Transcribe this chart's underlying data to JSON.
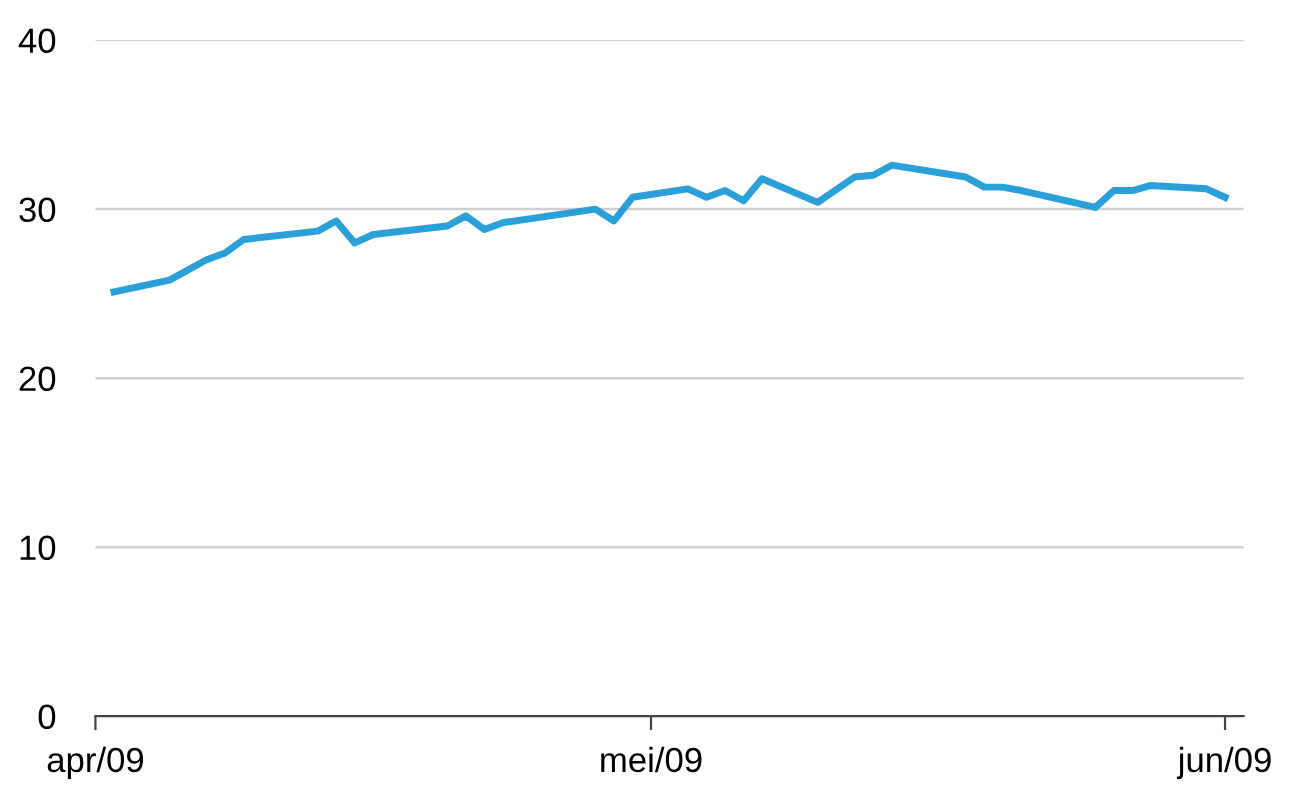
{
  "chart_data": {
    "type": "line",
    "x": [
      "2009-04-02",
      "2009-04-05",
      "2009-04-07",
      "2009-04-08",
      "2009-04-09",
      "2009-04-13",
      "2009-04-14",
      "2009-04-15",
      "2009-04-16",
      "2009-04-20",
      "2009-04-21",
      "2009-04-22",
      "2009-04-23",
      "2009-04-28",
      "2009-04-29",
      "2009-04-30",
      "2009-05-03",
      "2009-05-04",
      "2009-05-05",
      "2009-05-06",
      "2009-05-07",
      "2009-05-10",
      "2009-05-12",
      "2009-05-13",
      "2009-05-14",
      "2009-05-18",
      "2009-05-19",
      "2009-05-20",
      "2009-05-21",
      "2009-05-25",
      "2009-05-26",
      "2009-05-27",
      "2009-05-28",
      "2009-05-31",
      "2009-06-01"
    ],
    "series": [
      {
        "color": "#2a9fd8",
        "values": [
          25.1,
          25.8,
          27.0,
          27.4,
          28.2,
          28.7,
          29.3,
          28.0,
          28.5,
          29.0,
          29.6,
          28.8,
          29.2,
          30.0,
          29.3,
          30.7,
          31.2,
          30.7,
          31.1,
          30.5,
          31.8,
          30.4,
          31.9,
          32.0,
          32.6,
          31.9,
          31.3,
          31.3,
          31.1,
          30.1,
          31.1,
          31.1,
          31.4,
          31.2,
          30.7
        ]
      }
    ],
    "xlim": [
      "2009-04-01",
      "2009-06-02"
    ],
    "xticks": [
      {
        "value": "2009-04-01",
        "label": "apr/09"
      },
      {
        "value": "2009-05-01",
        "label": "mei/09"
      },
      {
        "value": "2009-06-01",
        "label": "jun/09"
      }
    ],
    "ylim": [
      0,
      40
    ],
    "yticks": [
      0,
      10,
      20,
      30,
      40
    ],
    "grid": "y",
    "marker": "none",
    "line_style": "solid"
  }
}
